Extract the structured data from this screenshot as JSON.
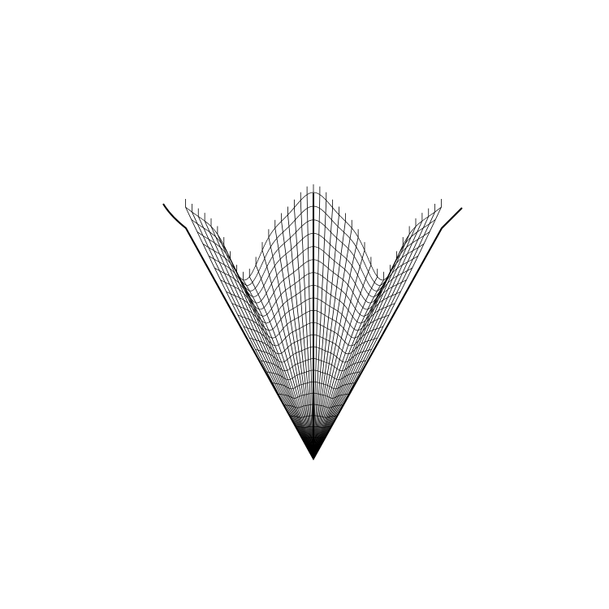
{
  "figure": {
    "description_kind": "wireframe-surface",
    "colors": {
      "background": "#ffffff",
      "stroke": "#000000"
    },
    "grid": {
      "meridian_count": 41,
      "ring_count": 22
    }
  }
}
